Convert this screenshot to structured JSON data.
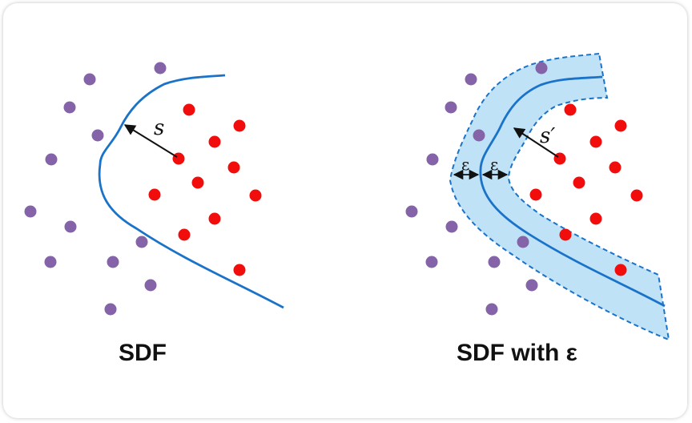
{
  "left_panel": {
    "title": "SDF",
    "distance_label": "s"
  },
  "right_panel": {
    "title": "SDF with ε",
    "distance_label": "s′",
    "epsilon_label_outer": "ε",
    "epsilon_label_inner": "ε"
  },
  "colors": {
    "boundary": "#1a73c9",
    "band_fill": "#bfe2f7",
    "outside_point": "#8463a8",
    "inside_point": "#f20d0d",
    "arrow": "#111111"
  }
}
